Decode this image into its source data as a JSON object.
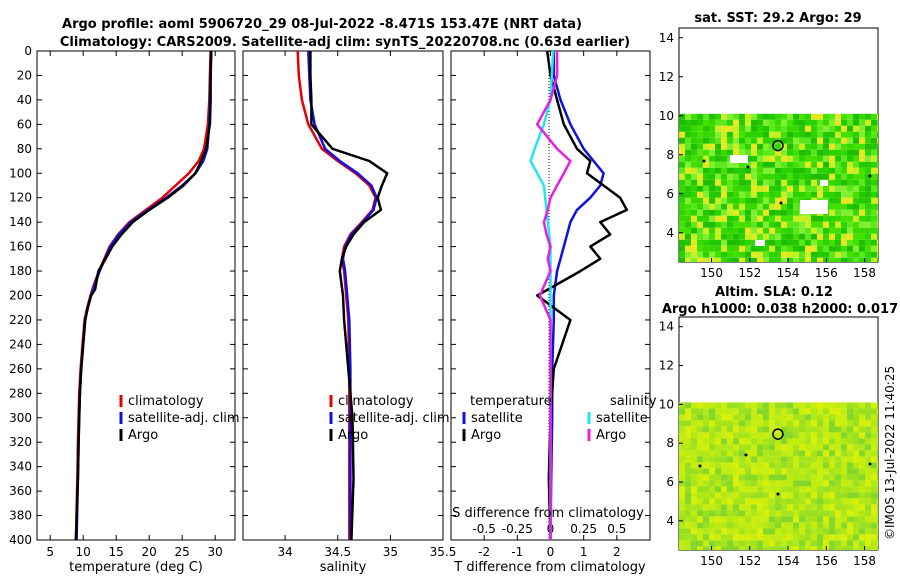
{
  "title": {
    "line1": "Argo profile: aoml 5906720_29 08-Jul-2022 -8.471S 153.47E (NRT data)",
    "line2": "Climatology: CARS2009. Satellite-adj clim: synTS_20220708.nc (0.63d earlier)"
  },
  "colors": {
    "climatology": "#e60000",
    "satellite": "#1010e0",
    "argo": "#000000",
    "sat_salinity": "#22e6f0",
    "argo_salinity": "#e61ee6"
  },
  "depth_ticks": [
    "0",
    "20",
    "40",
    "60",
    "80",
    "100",
    "120",
    "140",
    "160",
    "180",
    "200",
    "220",
    "240",
    "260",
    "280",
    "300",
    "320",
    "340",
    "360",
    "380",
    "400"
  ],
  "chart_data": [
    {
      "type": "line",
      "title": "",
      "xlabel": "temperature (deg C)",
      "ylabel": "",
      "xlim": [
        3,
        33
      ],
      "ylim": [
        0,
        400
      ],
      "xticks": [
        "5",
        "10",
        "15",
        "20",
        "25",
        "30"
      ],
      "legend": [
        "climatology",
        "satellite-adj. clim",
        "Argo"
      ],
      "series": [
        {
          "name": "climatology",
          "x": [
            29.3,
            29.2,
            29.1,
            28.9,
            28.3,
            27.5,
            26.0,
            24.0,
            22.0,
            19.5,
            17.0,
            15.3,
            14.0,
            13.2,
            12.4,
            11.7,
            11.1,
            10.6,
            10.2,
            9.9,
            9.6,
            9.4,
            9.3,
            9.2,
            9.1,
            8.9
          ],
          "y": [
            0,
            20,
            40,
            60,
            80,
            90,
            100,
            110,
            120,
            130,
            140,
            150,
            160,
            170,
            180,
            190,
            200,
            210,
            220,
            240,
            260,
            280,
            300,
            320,
            350,
            400
          ]
        },
        {
          "name": "satellite-adj. clim",
          "x": [
            29.4,
            29.3,
            29.2,
            29.1,
            28.8,
            28.2,
            27.0,
            25.0,
            22.6,
            19.8,
            17.2,
            15.4,
            14.1,
            13.3,
            12.5,
            11.8,
            11.2,
            10.7,
            10.3,
            10.0,
            9.7,
            9.5,
            9.4,
            9.3,
            9.2,
            9.0
          ],
          "y": [
            0,
            20,
            40,
            60,
            80,
            90,
            100,
            110,
            120,
            130,
            140,
            150,
            160,
            170,
            180,
            190,
            200,
            210,
            220,
            240,
            260,
            280,
            300,
            320,
            350,
            400
          ]
        },
        {
          "name": "Argo",
          "x": [
            29.4,
            29.3,
            29.3,
            29.2,
            28.6,
            27.9,
            27.0,
            25.2,
            22.8,
            20.0,
            17.5,
            15.8,
            14.4,
            13.4,
            12.3,
            11.8,
            11.2,
            10.7,
            10.3,
            10.0,
            9.7,
            9.5,
            9.4,
            9.3,
            9.2,
            8.9
          ],
          "y": [
            0,
            20,
            40,
            60,
            80,
            90,
            100,
            110,
            120,
            130,
            140,
            150,
            160,
            170,
            180,
            195,
            200,
            210,
            220,
            240,
            260,
            280,
            300,
            320,
            350,
            400
          ]
        }
      ]
    },
    {
      "type": "line",
      "title": "",
      "xlabel": "salinity",
      "xlim": [
        33.6,
        35.5
      ],
      "ylim": [
        0,
        400
      ],
      "xticks": [
        "34",
        "34.5",
        "35",
        "35.5"
      ],
      "legend": [
        "climatology",
        "satellite-adj. clim",
        "Argo"
      ],
      "series": [
        {
          "name": "climatology",
          "x": [
            34.12,
            34.13,
            34.16,
            34.22,
            34.35,
            34.5,
            34.67,
            34.8,
            34.86,
            34.83,
            34.73,
            34.62,
            34.56,
            34.54,
            34.56,
            34.58,
            34.6,
            34.61,
            34.61,
            34.61,
            34.61
          ],
          "y": [
            0,
            20,
            40,
            60,
            80,
            90,
            100,
            110,
            120,
            130,
            140,
            150,
            160,
            170,
            180,
            200,
            220,
            260,
            300,
            350,
            400
          ]
        },
        {
          "name": "satellite-adj. clim",
          "x": [
            34.22,
            34.23,
            34.24,
            34.28,
            34.38,
            34.52,
            34.69,
            34.82,
            34.87,
            34.84,
            34.74,
            34.63,
            34.57,
            34.55,
            34.57,
            34.59,
            34.61,
            34.62,
            34.62,
            34.62,
            34.62
          ],
          "y": [
            0,
            20,
            40,
            60,
            80,
            90,
            100,
            110,
            120,
            130,
            140,
            150,
            160,
            170,
            180,
            200,
            220,
            260,
            300,
            350,
            400
          ]
        },
        {
          "name": "Argo",
          "x": [
            34.24,
            34.24,
            34.25,
            34.25,
            34.45,
            34.8,
            34.97,
            34.92,
            34.88,
            34.91,
            34.75,
            34.65,
            34.58,
            34.54,
            34.52,
            34.55,
            34.56,
            34.6,
            34.64,
            34.65,
            34.63
          ],
          "y": [
            0,
            20,
            40,
            60,
            80,
            90,
            100,
            110,
            120,
            130,
            140,
            150,
            160,
            170,
            180,
            200,
            220,
            260,
            300,
            350,
            400
          ]
        }
      ]
    },
    {
      "type": "line",
      "title": "",
      "xlabel": "T difference from climatology",
      "xlabel_top": "S difference from climatology",
      "xlim": [
        -3,
        3
      ],
      "ylim": [
        0,
        400
      ],
      "xticks": [
        "-2",
        "-1",
        "0",
        "1",
        "2"
      ],
      "top_ticks": [
        "-0.5",
        "-0.25",
        "0",
        "0.25",
        "0.5"
      ],
      "legend_headers": [
        "temperature",
        "salinity"
      ],
      "legend": [
        "satellite",
        "Argo",
        "satellite",
        "Argo"
      ],
      "series": [
        {
          "name": "T satellite",
          "x": [
            0.1,
            0.1,
            0.3,
            0.6,
            1.0,
            1.3,
            1.6,
            1.5,
            1.2,
            0.8,
            0.6,
            0.5,
            0.4,
            0.3,
            0.2,
            0.1,
            0.1,
            0.05,
            0.05,
            0.02,
            0.0
          ],
          "y": [
            0,
            20,
            40,
            60,
            80,
            90,
            100,
            110,
            120,
            130,
            140,
            150,
            160,
            170,
            180,
            200,
            220,
            260,
            300,
            350,
            400
          ]
        },
        {
          "name": "T Argo",
          "x": [
            -0.1,
            0.0,
            0.2,
            0.4,
            0.8,
            1.2,
            1.1,
            1.6,
            2.1,
            2.3,
            1.5,
            1.8,
            1.2,
            1.5,
            0.9,
            -0.4,
            0.6,
            0.1,
            0.0,
            -0.05,
            0.0
          ],
          "y": [
            0,
            20,
            40,
            60,
            80,
            90,
            100,
            110,
            120,
            130,
            140,
            150,
            160,
            170,
            180,
            200,
            220,
            260,
            300,
            350,
            400
          ]
        },
        {
          "name": "S satellite",
          "x": [
            0.02,
            0.01,
            0.0,
            -0.05,
            -0.12,
            -0.15,
            -0.1,
            -0.05,
            -0.04,
            -0.03,
            -0.02,
            -0.01,
            0.0,
            0.0,
            0.0,
            0.0,
            0.0,
            0.0,
            0.0,
            0.0
          ],
          "y": [
            0,
            20,
            40,
            60,
            80,
            90,
            100,
            110,
            120,
            130,
            140,
            150,
            160,
            180,
            200,
            220,
            260,
            300,
            350,
            400
          ]
        },
        {
          "name": "S Argo",
          "x": [
            0.05,
            0.05,
            0.0,
            -0.1,
            0.05,
            0.15,
            0.1,
            0.05,
            0.0,
            -0.02,
            -0.05,
            -0.03,
            0.0,
            -0.02,
            0.0,
            -0.08,
            0.0,
            0.0,
            0.0,
            0.0,
            0.0
          ],
          "y": [
            0,
            20,
            40,
            60,
            80,
            90,
            100,
            110,
            120,
            130,
            140,
            150,
            160,
            170,
            180,
            200,
            220,
            260,
            300,
            350,
            400
          ]
        }
      ]
    }
  ],
  "maps": {
    "sst": {
      "title": "sat. SST: 29.2 Argo: 29",
      "xticks": [
        "150",
        "152",
        "154",
        "156",
        "158"
      ],
      "yticks": [
        "4",
        "6",
        "8",
        "10",
        "12",
        "14"
      ],
      "xlim": [
        148.3,
        158.7
      ],
      "ylim": [
        2.5,
        14.5
      ],
      "data_top_lat": 10.1,
      "float": [
        153.47,
        8.47
      ]
    },
    "sla": {
      "title1": "Altim. SLA: 0.12",
      "title2": "Argo h1000: 0.038 h2000: 0.017",
      "xticks": [
        "150",
        "152",
        "154",
        "156",
        "158"
      ],
      "yticks": [
        "4",
        "6",
        "8",
        "10",
        "12",
        "14"
      ],
      "xlim": [
        148.3,
        158.7
      ],
      "ylim": [
        2.5,
        14.5
      ],
      "data_top_lat": 10.1,
      "float": [
        153.47,
        8.47
      ]
    }
  },
  "stamp": "©IMOS 13-Jul-2022 11:40:25"
}
